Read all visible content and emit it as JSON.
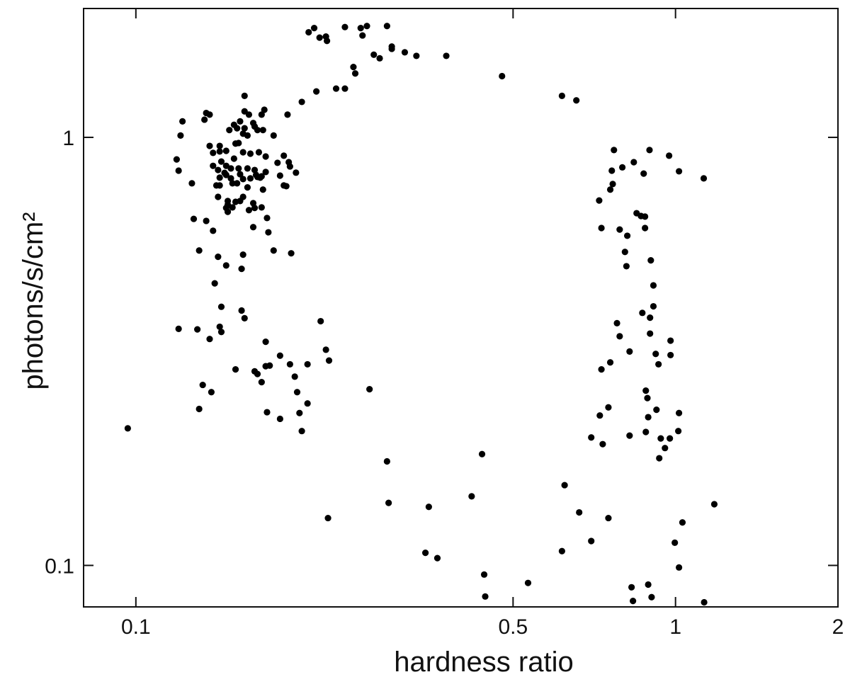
{
  "chart_data": {
    "type": "scatter",
    "x_label": "hardness ratio",
    "y_label": "photons/s/cm²",
    "xscale": "log",
    "yscale": "log",
    "xlim": [
      0.08,
      2
    ],
    "ylim": [
      0.08,
      2
    ],
    "xticks": [
      0.1,
      0.5,
      1,
      2
    ],
    "yticks": [
      0.1,
      1
    ],
    "color": "#000000",
    "x": [
      0.209,
      0.214,
      0.219,
      0.225,
      0.226,
      0.244,
      0.261,
      0.268,
      0.292,
      0.263,
      0.276,
      0.283,
      0.298,
      0.298,
      0.315,
      0.331,
      0.376,
      0.253,
      0.255,
      0.235,
      0.244,
      0.216,
      0.203,
      0.191,
      0.477,
      0.616,
      0.655,
      0.159,
      0.135,
      0.137,
      0.134,
      0.122,
      0.121,
      0.156,
      0.152,
      0.159,
      0.162,
      0.173,
      0.171,
      0.166,
      0.165,
      0.159,
      0.154,
      0.149,
      0.168,
      0.172,
      0.18,
      0.158,
      0.161,
      0.143,
      0.139,
      0.137,
      0.155,
      0.153,
      0.147,
      0.143,
      0.158,
      0.163,
      0.169,
      0.174,
      0.188,
      0.192,
      0.193,
      0.183,
      0.152,
      0.144,
      0.147,
      0.139,
      0.142,
      0.146,
      0.15,
      0.155,
      0.161,
      0.166,
      0.167,
      0.174,
      0.156,
      0.158,
      0.15,
      0.147,
      0.143,
      0.163,
      0.168,
      0.17,
      0.171,
      0.185,
      0.198,
      0.119,
      0.12,
      0.127,
      0.143,
      0.141,
      0.151,
      0.154,
      0.161,
      0.172,
      0.188,
      0.19,
      0.142,
      0.148,
      0.148,
      0.153,
      0.156,
      0.158,
      0.165,
      0.166,
      0.171,
      0.162,
      0.147,
      0.148,
      0.151,
      0.128,
      0.135,
      0.139,
      0.165,
      0.175,
      0.176,
      0.131,
      0.142,
      0.158,
      0.18,
      0.194,
      0.147,
      0.157,
      0.14,
      0.144,
      0.157,
      0.159,
      0.12,
      0.13,
      0.137,
      0.143,
      0.144,
      0.22,
      0.174,
      0.225,
      0.228,
      0.185,
      0.174,
      0.177,
      0.166,
      0.153,
      0.168,
      0.171,
      0.193,
      0.197,
      0.208,
      0.133,
      0.138,
      0.131,
      0.175,
      0.199,
      0.208,
      0.201,
      0.185,
      0.203,
      0.0966,
      0.271,
      0.769,
      0.895,
      0.973,
      0.837,
      0.797,
      0.762,
      0.873,
      1.015,
      1.128,
      0.765,
      0.757,
      0.722,
      0.729,
      0.847,
      0.863,
      0.878,
      0.788,
      0.878,
      0.814,
      0.806,
      0.9,
      0.811,
      0.91,
      0.91,
      0.779,
      0.868,
      0.897,
      0.788,
      0.897,
      0.979,
      0.822,
      0.919,
      0.979,
      0.93,
      0.757,
      0.729,
      0.881,
      0.887,
      0.751,
      0.922,
      0.724,
      1.015,
      0.89,
      0.698,
      0.822,
      0.881,
      1.012,
      0.939,
      0.976,
      0.733,
      0.956,
      0.933,
      0.292,
      0.438,
      0.623,
      0.294,
      0.349,
      0.419,
      0.663,
      0.227,
      0.751,
      1.18,
      1.03,
      0.997,
      0.698,
      0.616,
      0.344,
      0.362,
      1.015,
      0.442,
      0.533,
      0.829,
      0.89,
      0.444,
      0.834,
      0.903,
      1.13
    ],
    "values": [
      1.76,
      1.8,
      1.71,
      1.72,
      1.68,
      1.81,
      1.8,
      1.82,
      1.82,
      1.73,
      1.56,
      1.53,
      1.63,
      1.61,
      1.58,
      1.55,
      1.55,
      1.46,
      1.41,
      1.3,
      1.3,
      1.28,
      1.21,
      1.13,
      1.39,
      1.25,
      1.22,
      1.25,
      1.14,
      1.13,
      1.1,
      1.09,
      1.01,
      1.09,
      1.07,
      1.15,
      1.13,
      1.16,
      1.13,
      1.06,
      1.08,
      1.05,
      1.05,
      1.04,
      1.04,
      1.04,
      1.01,
      1.02,
      1.01,
      0.955,
      0.92,
      0.955,
      0.97,
      0.967,
      0.93,
      0.927,
      0.923,
      0.916,
      0.923,
      0.902,
      0.906,
      0.875,
      0.855,
      0.872,
      0.892,
      0.878,
      0.858,
      0.858,
      0.839,
      0.826,
      0.846,
      0.846,
      0.846,
      0.839,
      0.817,
      0.83,
      0.82,
      0.799,
      0.802,
      0.817,
      0.772,
      0.802,
      0.808,
      0.805,
      0.811,
      0.814,
      0.827,
      0.888,
      0.836,
      0.781,
      0.805,
      0.772,
      0.781,
      0.781,
      0.764,
      0.755,
      0.772,
      0.769,
      0.726,
      0.71,
      0.696,
      0.707,
      0.71,
      0.726,
      0.702,
      0.684,
      0.686,
      0.676,
      0.684,
      0.67,
      0.686,
      0.645,
      0.638,
      0.605,
      0.617,
      0.648,
      0.6,
      0.544,
      0.526,
      0.532,
      0.544,
      0.536,
      0.502,
      0.493,
      0.456,
      0.402,
      0.394,
      0.378,
      0.357,
      0.356,
      0.338,
      0.361,
      0.351,
      0.372,
      0.333,
      0.319,
      0.301,
      0.309,
      0.292,
      0.293,
      0.284,
      0.287,
      0.28,
      0.268,
      0.295,
      0.276,
      0.295,
      0.264,
      0.254,
      0.232,
      0.228,
      0.254,
      0.239,
      0.227,
      0.22,
      0.206,
      0.209,
      0.258,
      0.934,
      0.934,
      0.906,
      0.875,
      0.851,
      0.836,
      0.823,
      0.833,
      0.802,
      0.778,
      0.755,
      0.712,
      0.614,
      0.665,
      0.655,
      0.653,
      0.609,
      0.614,
      0.589,
      0.54,
      0.516,
      0.5,
      0.451,
      0.403,
      0.368,
      0.389,
      0.379,
      0.343,
      0.348,
      0.335,
      0.316,
      0.312,
      0.31,
      0.295,
      0.298,
      0.287,
      0.256,
      0.246,
      0.234,
      0.231,
      0.224,
      0.227,
      0.222,
      0.199,
      0.201,
      0.205,
      0.206,
      0.198,
      0.198,
      0.192,
      0.188,
      0.178,
      0.175,
      0.182,
      0.154,
      0.14,
      0.137,
      0.145,
      0.133,
      0.129,
      0.129,
      0.139,
      0.126,
      0.113,
      0.114,
      0.108,
      0.107,
      0.104,
      0.0989,
      0.0952,
      0.091,
      0.0889,
      0.0902,
      0.0846,
      0.0826,
      0.0843,
      0.082
    ]
  }
}
